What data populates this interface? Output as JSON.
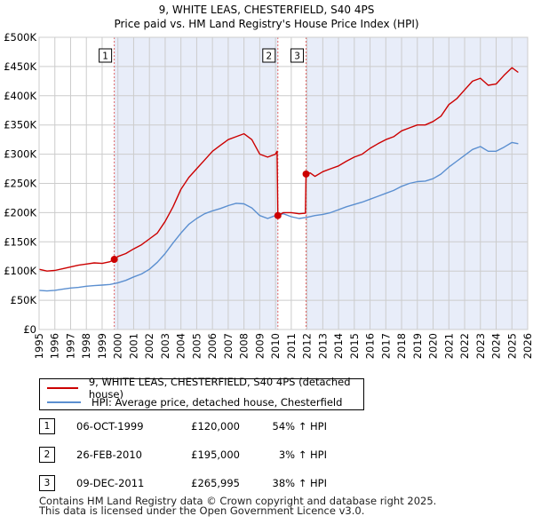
{
  "chart_data": {
    "type": "line",
    "title": "9, WHITE LEAS, CHESTERFIELD, S40 4PS",
    "subtitle": "Price paid vs. HM Land Registry's House Price Index (HPI)",
    "xlim": [
      1995,
      2026
    ],
    "ylim": [
      0,
      500000
    ],
    "x_ticks": [
      "1995",
      "1996",
      "1997",
      "1998",
      "1999",
      "2000",
      "2001",
      "2002",
      "2003",
      "2004",
      "2005",
      "2006",
      "2007",
      "2008",
      "2009",
      "2010",
      "2011",
      "2012",
      "2013",
      "2014",
      "2015",
      "2016",
      "2017",
      "2018",
      "2019",
      "2020",
      "2021",
      "2022",
      "2023",
      "2024",
      "2025",
      "2026"
    ],
    "y_ticks": [
      {
        "value": 0,
        "label": "£0"
      },
      {
        "value": 50000,
        "label": "£50K"
      },
      {
        "value": 100000,
        "label": "£100K"
      },
      {
        "value": 150000,
        "label": "£150K"
      },
      {
        "value": 200000,
        "label": "£200K"
      },
      {
        "value": 250000,
        "label": "£250K"
      },
      {
        "value": 300000,
        "label": "£300K"
      },
      {
        "value": 350000,
        "label": "£350K"
      },
      {
        "value": 400000,
        "label": "£400K"
      },
      {
        "value": 450000,
        "label": "£450K"
      },
      {
        "value": 500000,
        "label": "£500K"
      }
    ],
    "grid": true,
    "shaded_ranges": [
      [
        1999.77,
        2010.15
      ],
      [
        2011.94,
        2026
      ]
    ],
    "series": [
      {
        "name": "9, WHITE LEAS, CHESTERFIELD, S40 4PS (detached house)",
        "color": "#cc0000",
        "points": [
          [
            1995.0,
            103000
          ],
          [
            1995.5,
            100000
          ],
          [
            1996.0,
            101000
          ],
          [
            1996.5,
            104000
          ],
          [
            1997.0,
            107000
          ],
          [
            1997.5,
            110000
          ],
          [
            1998.0,
            112000
          ],
          [
            1998.5,
            114000
          ],
          [
            1999.0,
            113000
          ],
          [
            1999.5,
            116000
          ],
          [
            1999.77,
            120000
          ],
          [
            2000.0,
            125000
          ],
          [
            2000.5,
            130000
          ],
          [
            2001.0,
            138000
          ],
          [
            2001.5,
            145000
          ],
          [
            2002.0,
            155000
          ],
          [
            2002.5,
            165000
          ],
          [
            2003.0,
            185000
          ],
          [
            2003.5,
            210000
          ],
          [
            2004.0,
            240000
          ],
          [
            2004.5,
            260000
          ],
          [
            2005.0,
            275000
          ],
          [
            2005.5,
            290000
          ],
          [
            2006.0,
            305000
          ],
          [
            2006.5,
            315000
          ],
          [
            2007.0,
            325000
          ],
          [
            2007.5,
            330000
          ],
          [
            2008.0,
            335000
          ],
          [
            2008.5,
            325000
          ],
          [
            2009.0,
            300000
          ],
          [
            2009.5,
            295000
          ],
          [
            2010.0,
            300000
          ],
          [
            2010.1,
            305000
          ],
          [
            2010.15,
            195000
          ],
          [
            2010.5,
            200000
          ],
          [
            2011.0,
            200000
          ],
          [
            2011.5,
            198000
          ],
          [
            2011.9,
            199000
          ],
          [
            2011.94,
            265995
          ],
          [
            2012.2,
            268000
          ],
          [
            2012.5,
            262000
          ],
          [
            2013.0,
            270000
          ],
          [
            2013.5,
            275000
          ],
          [
            2014.0,
            280000
          ],
          [
            2014.5,
            288000
          ],
          [
            2015.0,
            295000
          ],
          [
            2015.5,
            300000
          ],
          [
            2016.0,
            310000
          ],
          [
            2016.5,
            318000
          ],
          [
            2017.0,
            325000
          ],
          [
            2017.5,
            330000
          ],
          [
            2018.0,
            340000
          ],
          [
            2018.5,
            345000
          ],
          [
            2019.0,
            350000
          ],
          [
            2019.5,
            350000
          ],
          [
            2020.0,
            356000
          ],
          [
            2020.5,
            365000
          ],
          [
            2021.0,
            385000
          ],
          [
            2021.5,
            395000
          ],
          [
            2022.0,
            410000
          ],
          [
            2022.5,
            425000
          ],
          [
            2023.0,
            430000
          ],
          [
            2023.5,
            418000
          ],
          [
            2024.0,
            420000
          ],
          [
            2024.5,
            435000
          ],
          [
            2025.0,
            448000
          ],
          [
            2025.4,
            440000
          ]
        ]
      },
      {
        "name": "HPI: Average price, detached house, Chesterfield",
        "color": "#5b8fd0",
        "points": [
          [
            1995.0,
            67000
          ],
          [
            1995.5,
            66000
          ],
          [
            1996.0,
            67000
          ],
          [
            1996.5,
            69000
          ],
          [
            1997.0,
            71000
          ],
          [
            1997.5,
            72000
          ],
          [
            1998.0,
            74000
          ],
          [
            1998.5,
            75000
          ],
          [
            1999.0,
            76000
          ],
          [
            1999.5,
            77000
          ],
          [
            2000.0,
            80000
          ],
          [
            2000.5,
            84000
          ],
          [
            2001.0,
            90000
          ],
          [
            2001.5,
            95000
          ],
          [
            2002.0,
            103000
          ],
          [
            2002.5,
            115000
          ],
          [
            2003.0,
            130000
          ],
          [
            2003.5,
            148000
          ],
          [
            2004.0,
            165000
          ],
          [
            2004.5,
            180000
          ],
          [
            2005.0,
            190000
          ],
          [
            2005.5,
            198000
          ],
          [
            2006.0,
            203000
          ],
          [
            2006.5,
            207000
          ],
          [
            2007.0,
            212000
          ],
          [
            2007.5,
            216000
          ],
          [
            2008.0,
            215000
          ],
          [
            2008.5,
            208000
          ],
          [
            2009.0,
            195000
          ],
          [
            2009.5,
            190000
          ],
          [
            2010.0,
            195000
          ],
          [
            2010.5,
            198000
          ],
          [
            2011.0,
            193000
          ],
          [
            2011.5,
            190000
          ],
          [
            2012.0,
            192000
          ],
          [
            2012.5,
            195000
          ],
          [
            2013.0,
            197000
          ],
          [
            2013.5,
            200000
          ],
          [
            2014.0,
            205000
          ],
          [
            2014.5,
            210000
          ],
          [
            2015.0,
            214000
          ],
          [
            2015.5,
            218000
          ],
          [
            2016.0,
            223000
          ],
          [
            2016.5,
            228000
          ],
          [
            2017.0,
            233000
          ],
          [
            2017.5,
            238000
          ],
          [
            2018.0,
            245000
          ],
          [
            2018.5,
            250000
          ],
          [
            2019.0,
            253000
          ],
          [
            2019.5,
            254000
          ],
          [
            2020.0,
            258000
          ],
          [
            2020.5,
            266000
          ],
          [
            2021.0,
            278000
          ],
          [
            2021.5,
            288000
          ],
          [
            2022.0,
            298000
          ],
          [
            2022.5,
            308000
          ],
          [
            2023.0,
            313000
          ],
          [
            2023.5,
            305000
          ],
          [
            2024.0,
            305000
          ],
          [
            2024.5,
            312000
          ],
          [
            2025.0,
            320000
          ],
          [
            2025.4,
            318000
          ]
        ]
      }
    ],
    "sale_markers": [
      {
        "label": "1",
        "x": 1999.77,
        "price": 120000
      },
      {
        "label": "2",
        "x": 2010.15,
        "price": 195000
      },
      {
        "label": "3",
        "x": 2011.94,
        "price": 265995
      }
    ]
  },
  "legend": {
    "property_label": "9, WHITE LEAS, CHESTERFIELD, S40 4PS (detached house)",
    "hpi_label": "HPI: Average price, detached house, Chesterfield"
  },
  "sales": [
    {
      "num": "1",
      "date": "06-OCT-1999",
      "price": "£120,000",
      "hpi": "54% ↑ HPI"
    },
    {
      "num": "2",
      "date": "26-FEB-2010",
      "price": "£195,000",
      "hpi": "3% ↑ HPI"
    },
    {
      "num": "3",
      "date": "09-DEC-2011",
      "price": "£265,995",
      "hpi": "38% ↑ HPI"
    }
  ],
  "footer": {
    "line1": "Contains HM Land Registry data © Crown copyright and database right 2025.",
    "line2": "This data is licensed under the Open Government Licence v3.0."
  }
}
